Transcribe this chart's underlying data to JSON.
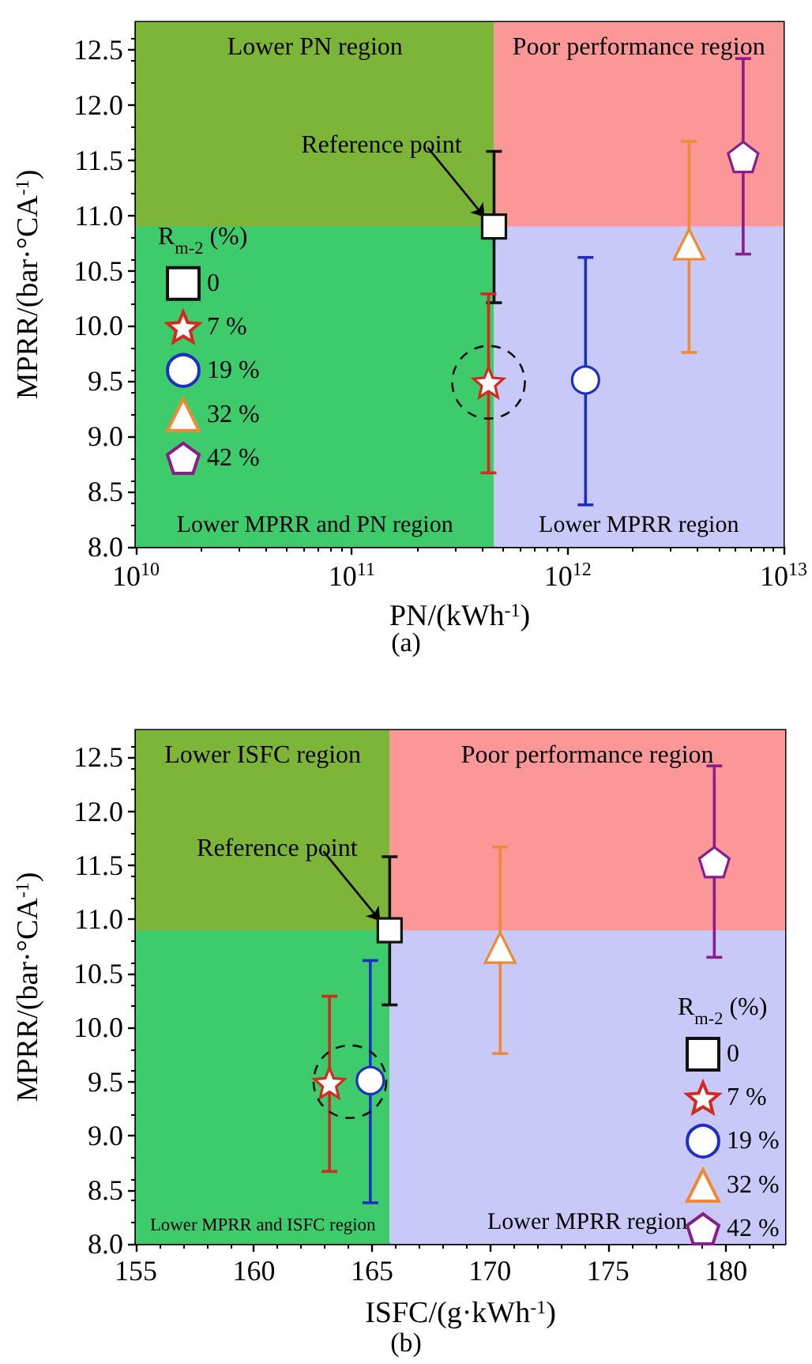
{
  "chart_data": [
    {
      "type": "scatter",
      "xlabel": "PN/(kWh$^{-1}$)",
      "ylabel": "MPRR/(bar·°CA$^{-1}$)",
      "legend_title": "R$_{m-2}$ (%)",
      "legend": "left",
      "log": "x",
      "xlim": [
        10000000000.0,
        10000000000000.0
      ],
      "xticks": [
        {
          "value": 10000000000.0,
          "label": "10$^{10}$"
        },
        {
          "value": 100000000000.0,
          "label": "10$^{11}$"
        },
        {
          "value": 1000000000000.0,
          "label": "10$^{12}$"
        },
        {
          "value": 10000000000000.0,
          "label": "10$^{13}$"
        }
      ],
      "ylim": [
        8,
        12.75
      ],
      "yticks": [
        {
          "value": 8,
          "label": "8.0"
        },
        8.5,
        {
          "value": 9,
          "label": "9.0"
        },
        9.5,
        {
          "value": 10,
          "label": "10.0"
        },
        10.5,
        {
          "value": 11,
          "label": "11.0"
        },
        11.5,
        {
          "value": 12,
          "label": "12.0"
        },
        12.5
      ],
      "series": [
        {
          "name": "0",
          "color": "#111111",
          "marker": "square",
          "x": [
            456000000000.0
          ],
          "values": [
            10.9
          ],
          "errors": [
            [
              10.21,
              11.58
            ]
          ]
        },
        {
          "name": "7 %",
          "color": "#d22a1e",
          "marker": "star",
          "x": [
            430000000000.0
          ],
          "values": [
            9.49
          ],
          "errors": [
            [
              8.67,
              10.29
            ]
          ]
        },
        {
          "name": "19 %",
          "color": "#1c2fc4",
          "marker": "circle",
          "x": [
            1210000000000.0
          ],
          "values": [
            9.51
          ],
          "errors": [
            [
              8.38,
              10.62
            ]
          ]
        },
        {
          "name": "32 %",
          "color": "#f08a30",
          "marker": "triangle",
          "x": [
            3650000000000.0
          ],
          "values": [
            10.74
          ],
          "errors": [
            [
              9.76,
              11.67
            ]
          ]
        },
        {
          "name": "42 %",
          "color": "#8a1d8c",
          "x": [
            6500000000000.0
          ],
          "values": [
            11.53
          ],
          "errors": [
            [
              10.65,
              12.42
            ]
          ]
        }
      ],
      "bands": [
        {
          "axis": "x",
          "from": 10000000000.0,
          "to": 456000000000.0,
          "label": "Lower MPRR and PN region",
          "color": "#3ecb6c"
        },
        {
          "axis": "x",
          "from": 456000000000.0,
          "to": 10000000000000.0,
          "label": "Lower MPRR region",
          "color": "#c9c9f9"
        },
        {
          "axis": "y",
          "from": 10.9,
          "to": 12.75,
          "label": "Lower PN region",
          "color": "#7db538"
        },
        {
          "axis": "y",
          "from": 10.9,
          "to": 12.75,
          "label": "Poor performance region",
          "color": "#fc9797"
        }
      ],
      "annotations": [
        {
          "text": "Reference point",
          "x": 456000000000.0,
          "y": 10.9
        },
        "(a)"
      ]
    },
    {
      "type": "scatter",
      "xlabel": "ISFC/(g·kWh$^{-1}$)",
      "ylabel": "MPRR/(bar·°CA$^{-1}$)",
      "legend_title": "R$_{m-2}$ (%)",
      "legend": "bottom right",
      "xlim": [
        155,
        182.5
      ],
      "xticks": [
        155,
        160,
        165,
        170,
        175,
        180
      ],
      "ylim": [
        8,
        12.75
      ],
      "yticks": [
        {
          "value": 8,
          "label": "8.0"
        },
        8.5,
        {
          "value": 9,
          "label": "9.0"
        },
        9.5,
        {
          "value": 10,
          "label": "10.0"
        },
        10.5,
        {
          "value": 11,
          "label": "11.0"
        },
        11.5,
        {
          "value": 12,
          "label": "12.0"
        },
        12.5
      ],
      "series": [
        {
          "name": "0",
          "color": "#111111",
          "marker": "square",
          "x": [
            165.75
          ],
          "values": [
            10.9
          ],
          "errors": [
            [
              10.21,
              11.58
            ]
          ]
        },
        {
          "name": "7 %",
          "color": "#d22a1e",
          "marker": "star",
          "x": [
            163.2
          ],
          "values": [
            9.49
          ],
          "errors": [
            [
              8.67,
              10.29
            ]
          ]
        },
        {
          "name": "19 %",
          "color": "#1c2fc4",
          "marker": "circle",
          "x": [
            164.93
          ],
          "values": [
            9.51
          ],
          "errors": [
            [
              8.38,
              10.62
            ]
          ]
        },
        {
          "name": "32 %",
          "color": "#f08a30",
          "marker": "triangle",
          "x": [
            170.43
          ],
          "values": [
            10.74
          ],
          "errors": [
            [
              9.76,
              11.67
            ]
          ]
        },
        {
          "name": "42 %",
          "color": "#8a1d8c",
          "x": [
            179.5
          ],
          "values": [
            11.53
          ],
          "errors": [
            [
              10.65,
              12.42
            ]
          ]
        }
      ],
      "bands": [
        {
          "axis": "x",
          "from": 155,
          "to": 165.75,
          "label": "Lower MPRR and ISFC region",
          "color": "#3ecb6c"
        },
        {
          "axis": "x",
          "from": 165.75,
          "to": 182.5,
          "label": "Lower MPRR region",
          "color": "#c9c9f9"
        },
        {
          "axis": "y",
          "from": 10.9,
          "to": 12.75,
          "label": "Lower ISFC region",
          "color": "#7db538"
        },
        {
          "axis": "y",
          "from": 10.9,
          "to": 12.75,
          "label": "Poor performance region",
          "color": "#fc9797"
        }
      ],
      "annotations": [
        {
          "text": "Reference point",
          "x": 165.75,
          "y": 10.9
        },
        "(b)"
      ]
    }
  ]
}
